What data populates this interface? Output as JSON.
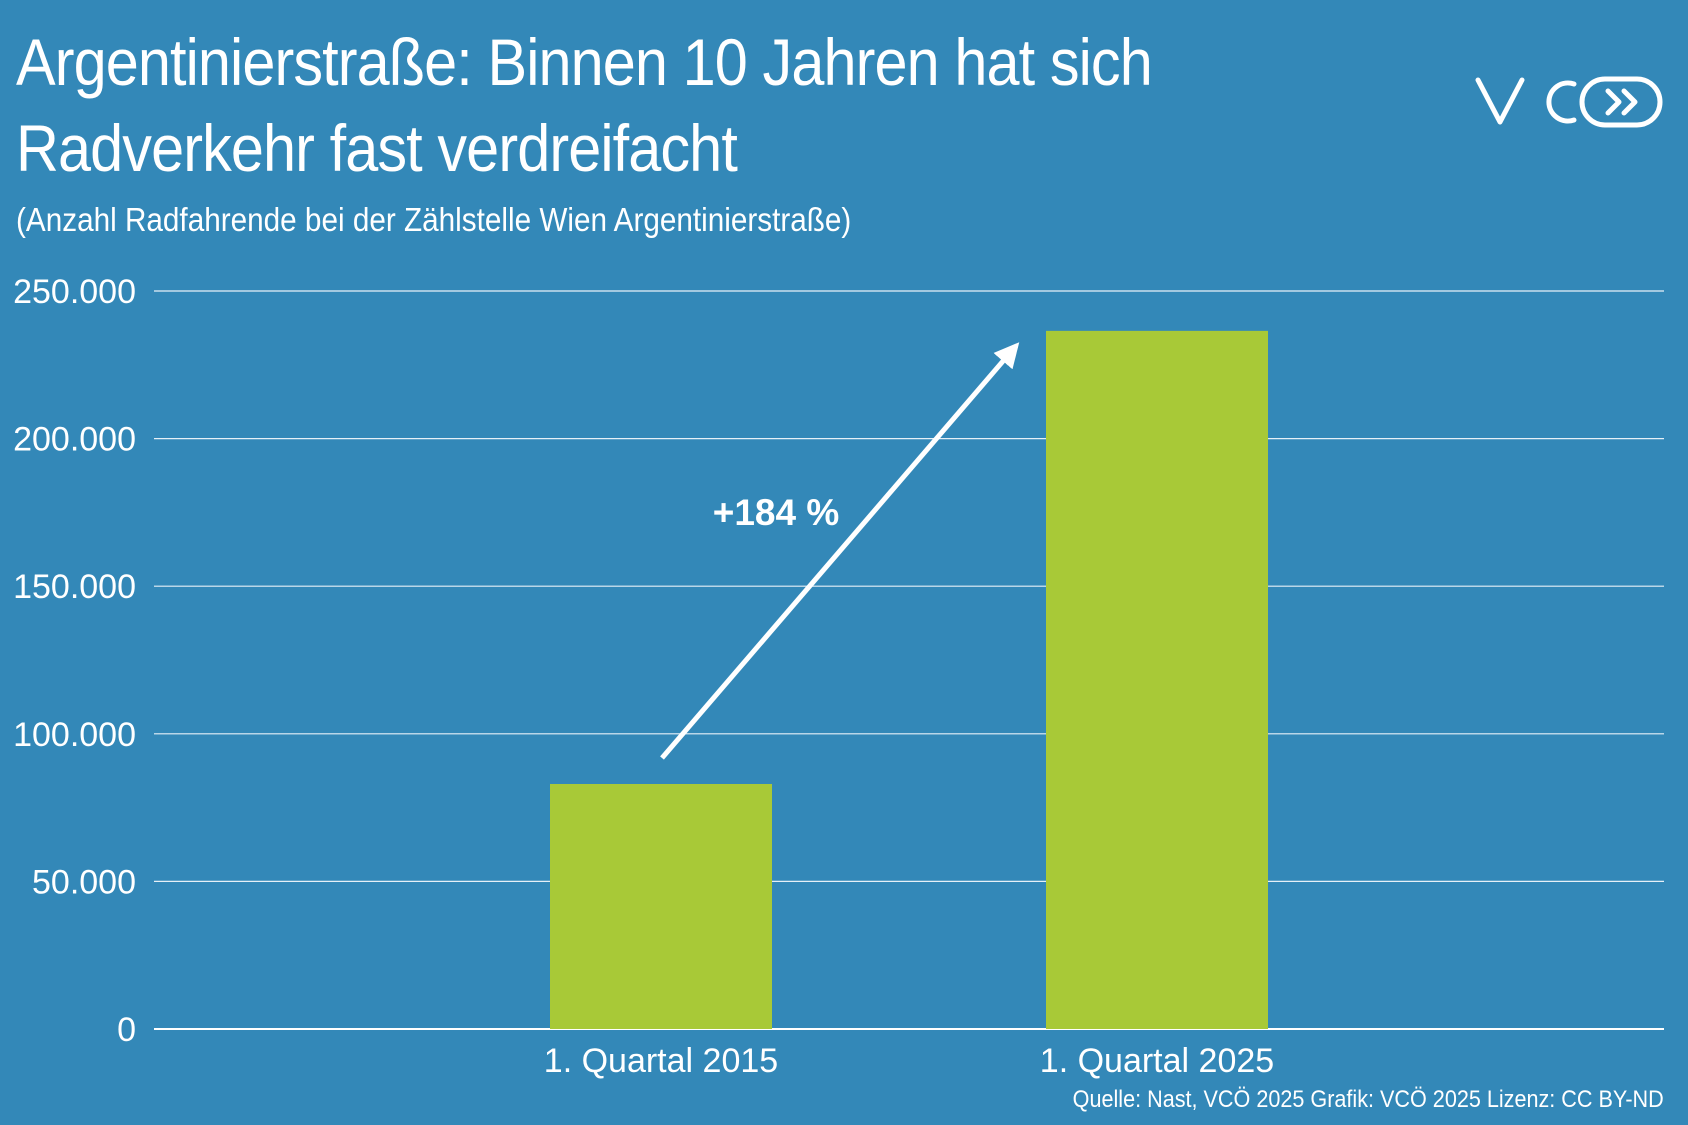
{
  "header": {
    "title_line1": "Argentinierstraße: Binnen 10 Jahren hat sich",
    "title_line2": "Radverkehr fast verdreifacht",
    "subtitle": "(Anzahl Radfahrende bei der Zählstelle Wien Argentinierstraße)"
  },
  "logo": {
    "text": "VCÖ",
    "icon": "vco-logo-icon"
  },
  "footer": {
    "source": "Quelle: Nast, VCÖ 2025 Grafik: VCÖ 2025 Lizenz: CC BY-ND"
  },
  "colors": {
    "background": "#3388b8",
    "bar": "#a8c937",
    "text": "#ffffff",
    "grid": "#e6f0f7"
  },
  "chart_data": {
    "type": "bar",
    "categories": [
      "1. Quartal 2015",
      "1. Quartal 2025"
    ],
    "values": [
      83000,
      236500
    ],
    "ylim": [
      0,
      250000
    ],
    "yticks": [
      0,
      50000,
      100000,
      150000,
      200000,
      250000
    ],
    "ytick_labels": [
      "0",
      "50.000",
      "100.000",
      "150.000",
      "200.000",
      "250.000"
    ],
    "grid": true,
    "annotation": {
      "text": "+184 %",
      "type": "arrow",
      "from": "1. Quartal 2015",
      "to": "1. Quartal 2025"
    }
  }
}
